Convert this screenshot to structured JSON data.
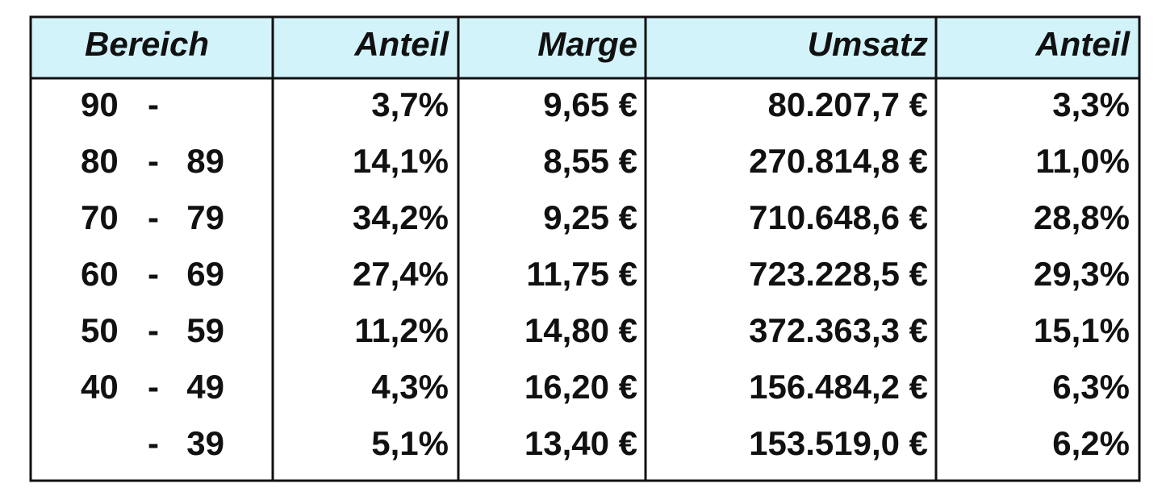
{
  "table": {
    "header": [
      "Bereich",
      "Anteil",
      "Marge",
      "Umsatz",
      "Anteil"
    ],
    "range_separator": "-",
    "rows": [
      {
        "range": {
          "from": "90"
        },
        "cells": [
          "3,7%",
          "9,65 €",
          "80.207,7 €",
          "3,3%"
        ]
      },
      {
        "range": {
          "from": "80",
          "to": "89"
        },
        "cells": [
          "14,1%",
          "8,55 €",
          "270.814,8 €",
          "11,0%"
        ]
      },
      {
        "range": {
          "from": "70",
          "to": "79"
        },
        "cells": [
          "34,2%",
          "9,25 €",
          "710.648,6 €",
          "28,8%"
        ]
      },
      {
        "range": {
          "from": "60",
          "to": "69"
        },
        "cells": [
          "27,4%",
          "11,75 €",
          "723.228,5 €",
          "29,3%"
        ]
      },
      {
        "range": {
          "from": "50",
          "to": "59"
        },
        "cells": [
          "11,2%",
          "14,80 €",
          "372.363,3 €",
          "15,1%"
        ]
      },
      {
        "range": {
          "from": "40",
          "to": "49"
        },
        "cells": [
          "4,3%",
          "16,20 €",
          "156.484,2 €",
          "6,3%"
        ]
      },
      {
        "range": {
          "to": "39"
        },
        "cells": [
          "5,1%",
          "13,40 €",
          "153.519,0 €",
          "6,2%"
        ]
      }
    ]
  }
}
